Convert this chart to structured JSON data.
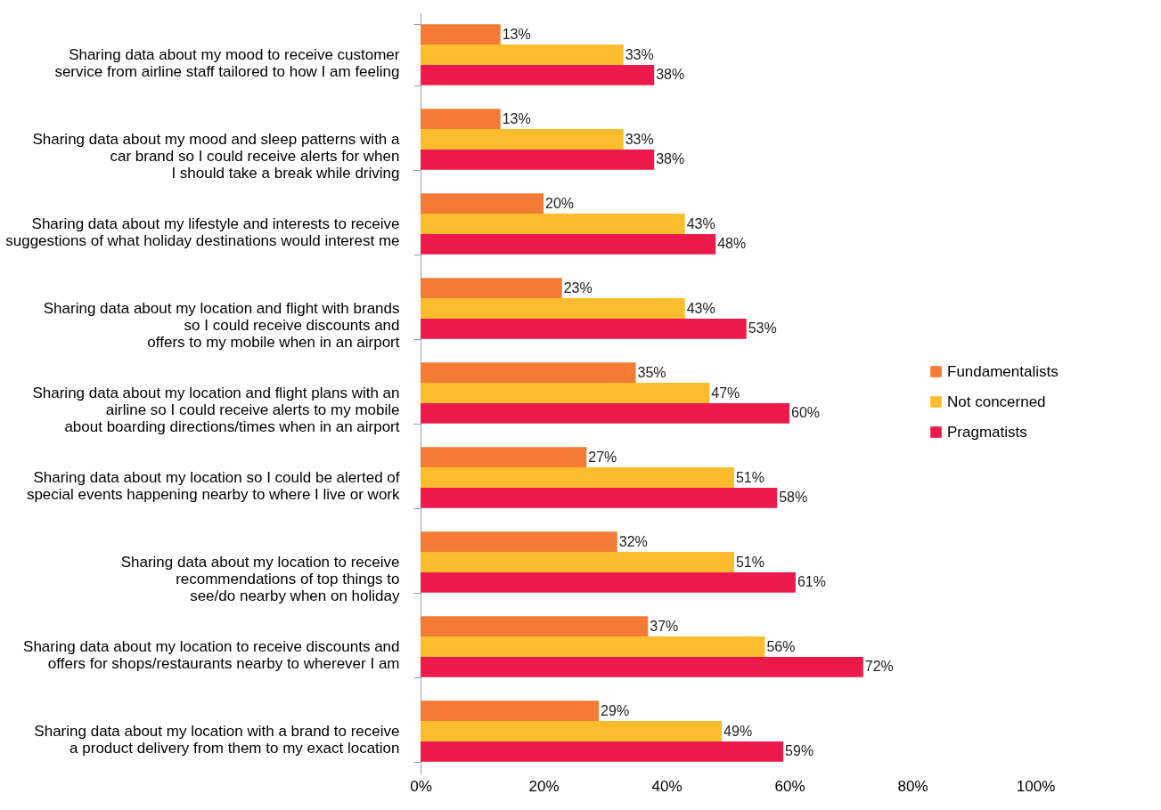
{
  "chart_data": {
    "type": "bar",
    "orientation": "horizontal",
    "categories": [
      "Sharing data about my mood to receive customer\nservice from airline staff tailored to how I am feeling",
      "Sharing data about my mood and sleep patterns with a\ncar brand so I could receive alerts for when\nI should take a break while driving",
      "Sharing data about my lifestyle and interests to receive\nsuggestions of what holiday destinations would interest me",
      "Sharing data about my location and flight with brands\nso I could receive discounts and\noffers to my mobile when in an airport",
      "Sharing data about my location and flight plans with an\nairline so I could receive alerts to my mobile\nabout boarding directions/times when in an airport",
      "Sharing data about my location so I could be alerted of\nspecial events happening nearby to where I live or work",
      "Sharing data about my location to receive\nrecommendations of top things to\nsee/do nearby when on holiday",
      "Sharing data about my location to receive discounts and\noffers for shops/restaurants nearby to wherever I am",
      "Sharing data about my location with a brand to receive\na product delivery from them to my exact location"
    ],
    "series": [
      {
        "name": "Fundamentalists",
        "color": "#f47b35",
        "values": [
          13,
          13,
          20,
          23,
          35,
          27,
          32,
          37,
          29
        ],
        "value_labels": [
          "13%",
          "13%",
          "20%",
          "23%",
          "35%",
          "27%",
          "32%",
          "37%",
          "29%"
        ]
      },
      {
        "name": "Not concerned",
        "color": "#fbbd2e",
        "values": [
          33,
          33,
          43,
          43,
          47,
          51,
          51,
          56,
          49
        ],
        "value_labels": [
          "33%",
          "33%",
          "43%",
          "43%",
          "47%",
          "51%",
          "51%",
          "56%",
          "49%"
        ]
      },
      {
        "name": "Pragmatists",
        "color": "#ec1a4a",
        "values": [
          38,
          38,
          48,
          53,
          60,
          58,
          61,
          72,
          59
        ],
        "value_labels": [
          "38%",
          "38%",
          "48%",
          "53%",
          "60%",
          "58%",
          "61%",
          "72%",
          "59%"
        ]
      }
    ],
    "xlim": [
      0,
      100
    ],
    "xticks": [
      {
        "value": 0,
        "label": "0%"
      },
      {
        "value": 20,
        "label": "20%"
      },
      {
        "value": 40,
        "label": "40%"
      },
      {
        "value": 60,
        "label": "60%"
      },
      {
        "value": 80,
        "label": "80%"
      },
      {
        "value": 100,
        "label": "100%"
      }
    ],
    "grid": false,
    "legend": "right"
  }
}
